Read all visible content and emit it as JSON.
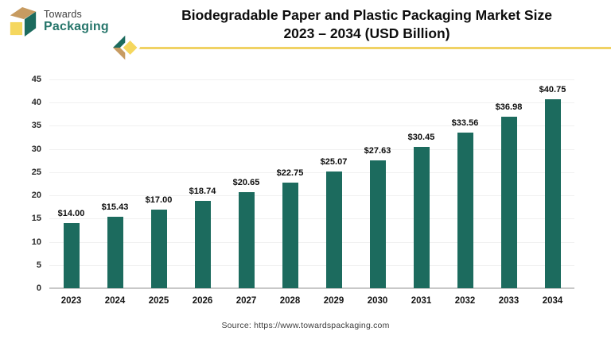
{
  "brand": {
    "name_line1": "Towards",
    "name_line2": "Packaging"
  },
  "header": {
    "title_line1": "Biodegradable Paper and Plastic Packaging Market Size",
    "title_line2": "2023 – 2034 (USD Billion)"
  },
  "footer": {
    "source": "Source: https://www.towardspackaging.com"
  },
  "colors": {
    "bar": "#1C6B5E",
    "accent_gold": "#F0D264",
    "logo_dark_green": "#1C6B5E",
    "logo_tan": "#C79B61",
    "logo_yellow": "#F5D75E",
    "brand_text_green": "#25756A",
    "brand_text_dark": "#3C3C3C",
    "gridline": "#F0F0F0",
    "axis_line": "#C8C8C8",
    "title_text": "#0D0D0D"
  },
  "chart_data": {
    "type": "bar",
    "title": "Biodegradable Paper and Plastic Packaging Market Size 2023 – 2034 (USD Billion)",
    "categories": [
      "2023",
      "2024",
      "2025",
      "2026",
      "2027",
      "2028",
      "2029",
      "2030",
      "2031",
      "2032",
      "2033",
      "2034"
    ],
    "values": [
      14.0,
      15.43,
      17.0,
      18.74,
      20.65,
      22.75,
      25.07,
      27.63,
      30.45,
      33.56,
      36.98,
      40.75
    ],
    "value_labels": [
      "$14.00",
      "$15.43",
      "$17.00",
      "$18.74",
      "$20.65",
      "$22.75",
      "$25.07",
      "$27.63",
      "$30.45",
      "$33.56",
      "$36.98",
      "$40.75"
    ],
    "xlabel": "",
    "ylabel": "",
    "ylim": [
      0,
      45
    ],
    "ytick_step": 5,
    "yticks": [
      0,
      5,
      10,
      15,
      20,
      25,
      30,
      35,
      40,
      45
    ],
    "grid": true,
    "legend": "none",
    "unit": "USD Billion"
  }
}
